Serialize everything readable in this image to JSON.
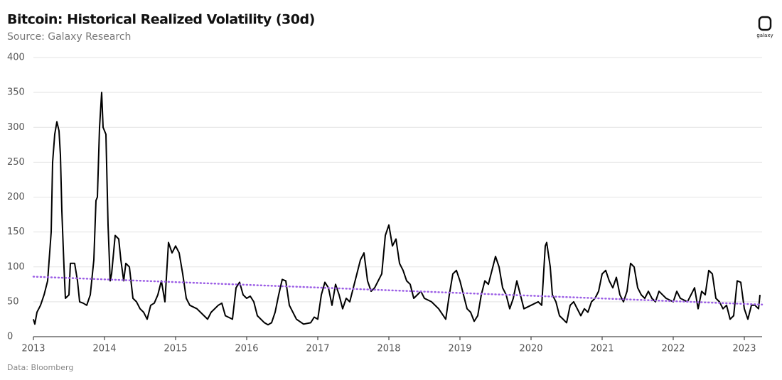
{
  "chart_data": {
    "type": "line",
    "title": "Bitcoin: Historical Realized Volatility (30d)",
    "subtitle": "Source: Galaxy Research",
    "footnote": "Data: Bloomberg",
    "logo": "galaxy",
    "xlim": [
      2013,
      2023.25
    ],
    "xticks": [
      2013,
      2014,
      2015,
      2016,
      2017,
      2018,
      2019,
      2020,
      2021,
      2022,
      2023
    ],
    "ylim": [
      0,
      400
    ],
    "yticks": [
      0,
      50,
      100,
      150,
      200,
      250,
      300,
      350,
      400
    ],
    "grid": true,
    "series": [
      {
        "color": "#000000",
        "style": "solid",
        "x": [
          2013.0,
          2013.02,
          2013.05,
          2013.1,
          2013.15,
          2013.2,
          2013.25,
          2013.27,
          2013.3,
          2013.33,
          2013.36,
          2013.38,
          2013.4,
          2013.43,
          2013.45,
          2013.5,
          2013.52,
          2013.58,
          2013.62,
          2013.65,
          2013.7,
          2013.75,
          2013.8,
          2013.85,
          2013.88,
          2013.9,
          2013.93,
          2013.96,
          2013.98,
          2014.02,
          2014.05,
          2014.08,
          2014.1,
          2014.15,
          2014.2,
          2014.23,
          2014.27,
          2014.3,
          2014.35,
          2014.4,
          2014.45,
          2014.5,
          2014.55,
          2014.6,
          2014.65,
          2014.7,
          2014.75,
          2014.8,
          2014.85,
          2014.9,
          2014.95,
          2015.0,
          2015.05,
          2015.1,
          2015.15,
          2015.2,
          2015.3,
          2015.4,
          2015.45,
          2015.5,
          2015.6,
          2015.65,
          2015.7,
          2015.8,
          2015.85,
          2015.9,
          2015.95,
          2016.0,
          2016.05,
          2016.1,
          2016.15,
          2016.25,
          2016.3,
          2016.35,
          2016.4,
          2016.45,
          2016.5,
          2016.55,
          2016.6,
          2016.7,
          2016.8,
          2016.9,
          2016.95,
          2017.0,
          2017.05,
          2017.1,
          2017.15,
          2017.2,
          2017.25,
          2017.3,
          2017.35,
          2017.4,
          2017.45,
          2017.5,
          2017.55,
          2017.6,
          2017.65,
          2017.7,
          2017.75,
          2017.8,
          2017.9,
          2017.95,
          2018.0,
          2018.05,
          2018.1,
          2018.15,
          2018.2,
          2018.25,
          2018.3,
          2018.35,
          2018.4,
          2018.45,
          2018.5,
          2018.6,
          2018.7,
          2018.8,
          2018.85,
          2018.9,
          2018.95,
          2019.0,
          2019.05,
          2019.1,
          2019.15,
          2019.2,
          2019.25,
          2019.3,
          2019.35,
          2019.4,
          2019.45,
          2019.5,
          2019.55,
          2019.6,
          2019.65,
          2019.7,
          2019.75,
          2019.8,
          2019.85,
          2019.9,
          2020.0,
          2020.1,
          2020.15,
          2020.2,
          2020.22,
          2020.27,
          2020.3,
          2020.35,
          2020.4,
          2020.45,
          2020.5,
          2020.55,
          2020.6,
          2020.7,
          2020.75,
          2020.8,
          2020.85,
          2020.9,
          2020.95,
          2021.0,
          2021.05,
          2021.1,
          2021.15,
          2021.2,
          2021.25,
          2021.3,
          2021.35,
          2021.4,
          2021.45,
          2021.5,
          2021.55,
          2021.6,
          2021.65,
          2021.7,
          2021.75,
          2021.8,
          2021.85,
          2021.9,
          2022.0,
          2022.05,
          2022.1,
          2022.2,
          2022.3,
          2022.35,
          2022.4,
          2022.45,
          2022.5,
          2022.55,
          2022.6,
          2022.65,
          2022.7,
          2022.75,
          2022.8,
          2022.85,
          2022.9,
          2022.95,
          2023.0,
          2023.05,
          2023.1,
          2023.15,
          2023.2,
          2023.22
        ],
        "values": [
          25,
          18,
          35,
          45,
          60,
          80,
          150,
          250,
          290,
          308,
          295,
          260,
          180,
          100,
          55,
          60,
          105,
          105,
          80,
          50,
          48,
          45,
          60,
          110,
          195,
          200,
          300,
          350,
          300,
          290,
          160,
          80,
          90,
          145,
          140,
          110,
          80,
          105,
          100,
          55,
          50,
          40,
          35,
          25,
          45,
          48,
          60,
          80,
          50,
          135,
          120,
          130,
          120,
          90,
          55,
          45,
          40,
          30,
          25,
          35,
          45,
          48,
          30,
          25,
          70,
          78,
          60,
          55,
          58,
          50,
          30,
          20,
          17,
          20,
          35,
          60,
          82,
          80,
          45,
          25,
          18,
          20,
          28,
          25,
          60,
          78,
          70,
          45,
          75,
          60,
          40,
          55,
          50,
          70,
          90,
          110,
          120,
          80,
          65,
          70,
          90,
          145,
          160,
          130,
          140,
          105,
          95,
          80,
          75,
          55,
          60,
          65,
          55,
          50,
          40,
          25,
          60,
          90,
          95,
          80,
          60,
          40,
          35,
          22,
          30,
          60,
          80,
          75,
          95,
          115,
          100,
          70,
          60,
          40,
          55,
          80,
          60,
          40,
          45,
          50,
          45,
          130,
          135,
          100,
          60,
          50,
          30,
          25,
          20,
          45,
          50,
          30,
          40,
          35,
          50,
          55,
          65,
          90,
          95,
          80,
          70,
          85,
          60,
          50,
          65,
          105,
          100,
          70,
          60,
          55,
          65,
          55,
          50,
          65,
          60,
          55,
          50,
          65,
          55,
          50,
          70,
          40,
          65,
          60,
          95,
          90,
          55,
          50,
          40,
          45,
          25,
          30,
          80,
          78,
          40,
          25,
          45,
          45,
          40,
          60
        ]
      },
      {
        "color": "#9b5de5",
        "style": "dotted",
        "x": [
          2013.0,
          2023.25
        ],
        "values": [
          86,
          46
        ]
      }
    ]
  }
}
